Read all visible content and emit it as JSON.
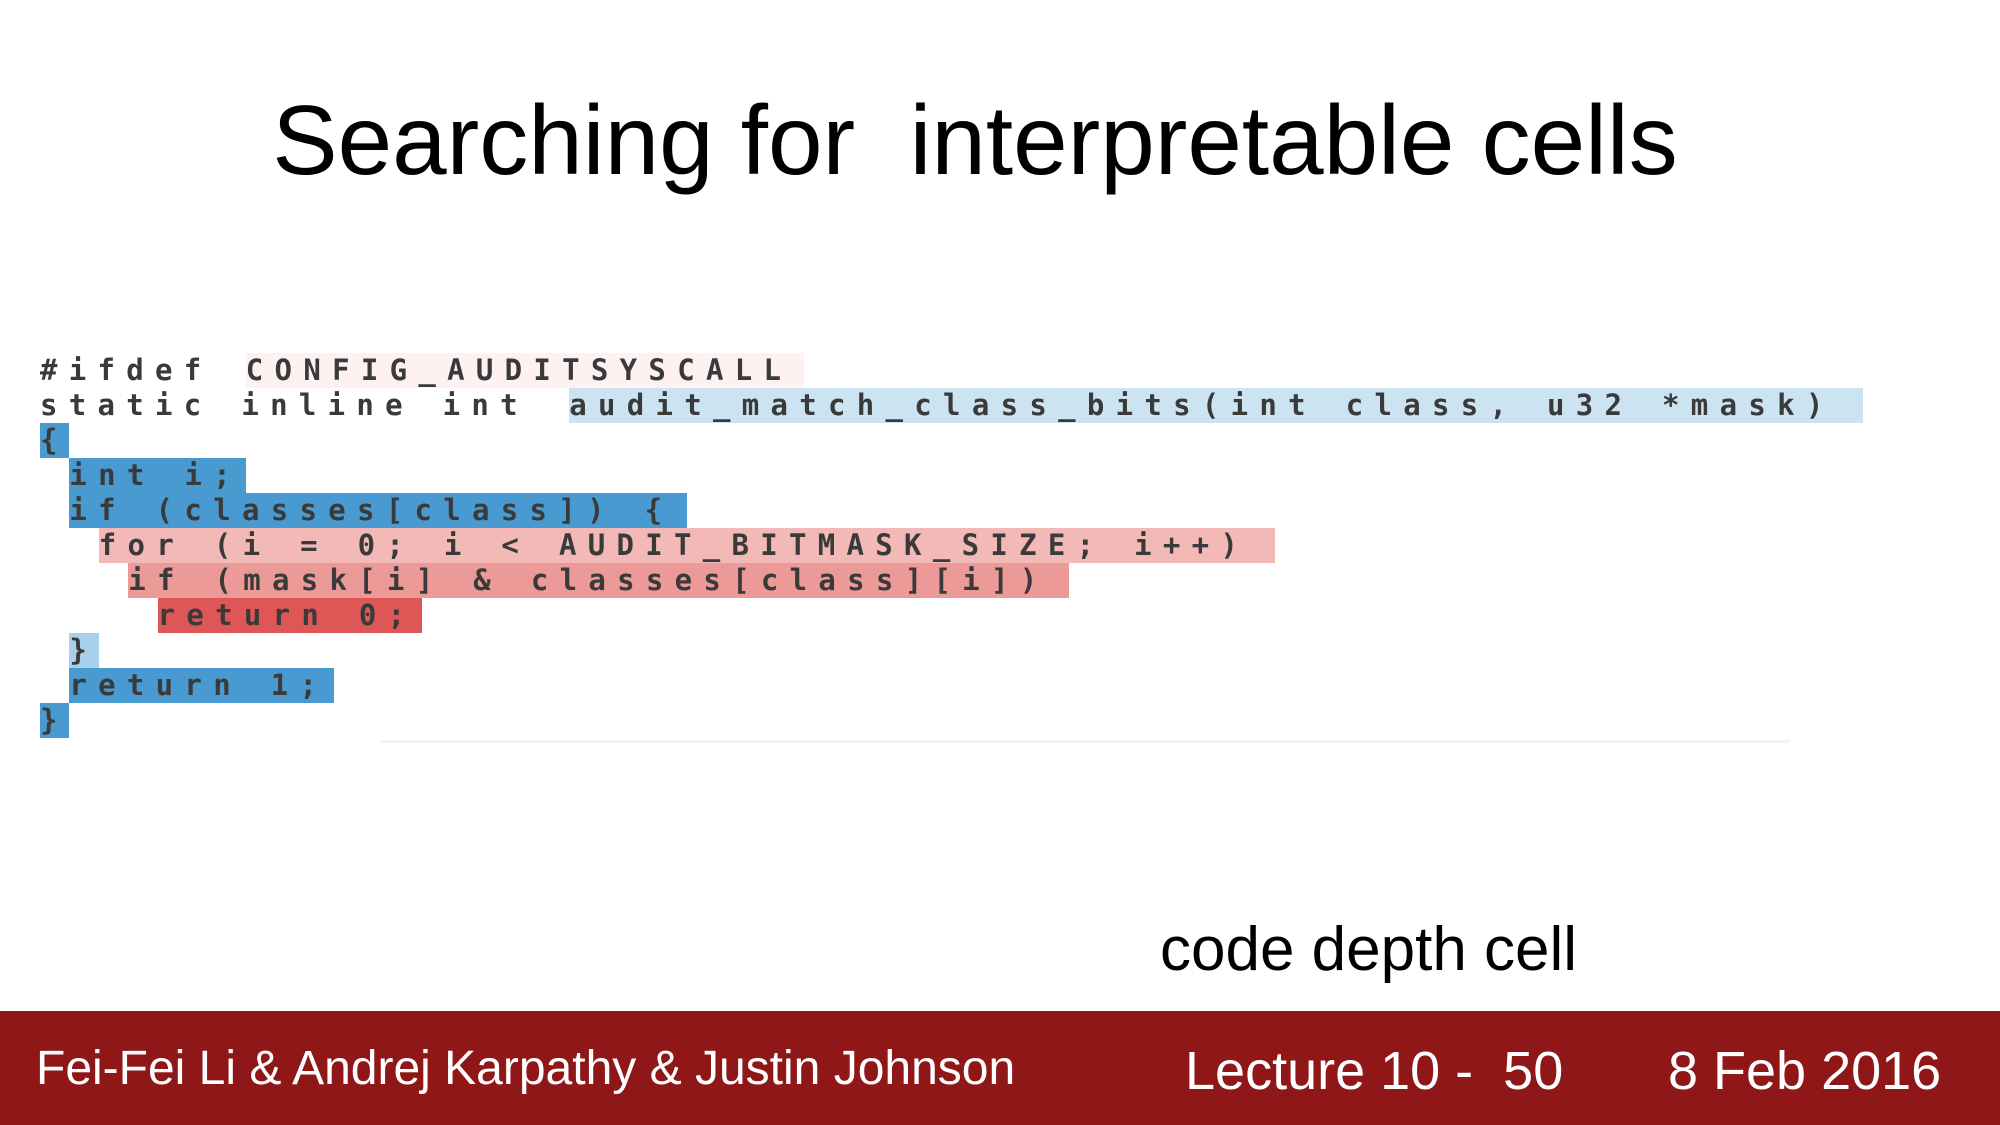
{
  "slide": {
    "title": "Searching for  interpretable cells",
    "cell_label": "code depth cell"
  },
  "code_lines": [
    {
      "segments": [
        {
          "text": "#ifdef ",
          "color": "#ffffff"
        },
        {
          "text": "CONFIG_AUDITSYSCALL",
          "color": "#fdf2f1"
        }
      ]
    },
    {
      "segments": [
        {
          "text": "static inline int ",
          "color": "#ffffff"
        },
        {
          "text": "audit_match_class_bits(int class, u32 *mask)",
          "color": "#cce4f2"
        }
      ]
    },
    {
      "segments": [
        {
          "text": "{",
          "color": "#4a9ad2"
        }
      ]
    },
    {
      "segments": [
        {
          "text": " ",
          "color": "#ffffff"
        },
        {
          "text": "int i;",
          "color": "#4a9ad2"
        }
      ]
    },
    {
      "segments": [
        {
          "text": " ",
          "color": "#ffffff"
        },
        {
          "text": "if (classes[class]) {",
          "color": "#4a9ad2"
        }
      ]
    },
    {
      "segments": [
        {
          "text": "  ",
          "color": "#ffffff"
        },
        {
          "text": "for (i = 0; i < AUDIT_BITMASK_SIZE; i++)",
          "color": "#f2b9b6"
        }
      ]
    },
    {
      "segments": [
        {
          "text": "   ",
          "color": "#ffffff"
        },
        {
          "text": "if (mask[i] & classes[class][i])",
          "color": "#ec9a97"
        }
      ]
    },
    {
      "segments": [
        {
          "text": "    ",
          "color": "#ffffff"
        },
        {
          "text": "return 0;",
          "color": "#de5656"
        }
      ]
    },
    {
      "segments": [
        {
          "text": " ",
          "color": "#ffffff"
        },
        {
          "text": "}",
          "color": "#a9d0ea"
        }
      ]
    },
    {
      "segments": [
        {
          "text": " ",
          "color": "#ffffff"
        },
        {
          "text": "return 1;",
          "color": "#4a9ad2"
        }
      ]
    },
    {
      "segments": [
        {
          "text": "}",
          "color": "#4a9ad2"
        }
      ]
    }
  ],
  "footer": {
    "authors": "Fei-Fei Li & Andrej Karpathy & Justin Johnson",
    "lecture": "Lecture 10 -  50",
    "date": "8 Feb 2016",
    "background_color": "#8f1717"
  }
}
